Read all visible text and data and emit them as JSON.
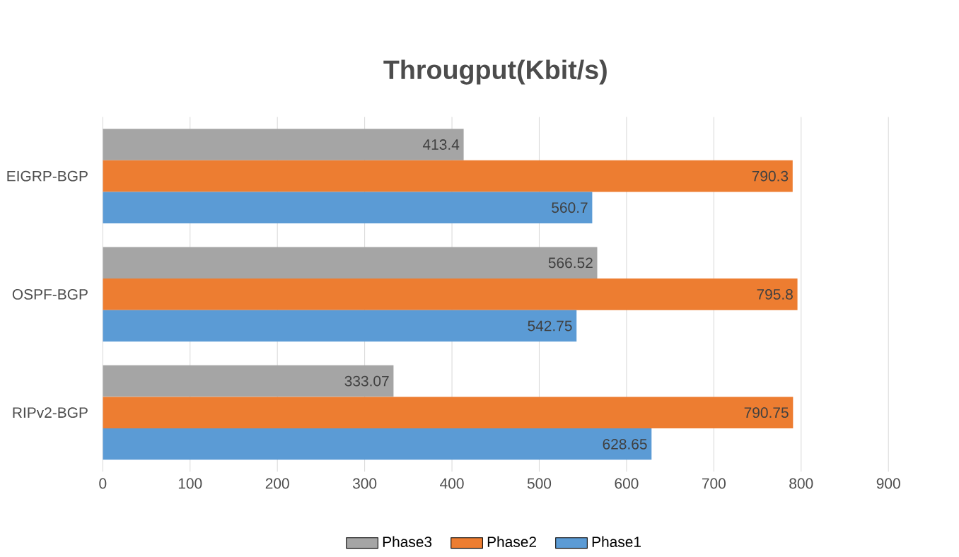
{
  "chart_data": {
    "type": "bar",
    "orientation": "horizontal",
    "title": "Througput(Kbit/s)",
    "categories": [
      "EIGRP-BGP",
      "OSPF-BGP",
      "RIPv2-BGP"
    ],
    "series": [
      {
        "name": "Phase3",
        "color": "#a5a5a5",
        "values": [
          413.4,
          566.52,
          333.07
        ],
        "value_labels": [
          "413.4",
          "566.52",
          "333.07"
        ]
      },
      {
        "name": "Phase2",
        "color": "#ed7d31",
        "values": [
          790.3,
          795.8,
          790.75
        ],
        "value_labels": [
          "790.3",
          "795.8",
          "790.75"
        ]
      },
      {
        "name": "Phase1",
        "color": "#5b9bd5",
        "values": [
          560.7,
          542.75,
          628.65
        ],
        "value_labels": [
          "560.7",
          "542.75",
          "628.65"
        ]
      }
    ],
    "xlim": [
      0,
      900
    ],
    "xticks": [
      0,
      100,
      200,
      300,
      400,
      500,
      600,
      700,
      800,
      900
    ],
    "grid": "x",
    "legend": "bottom"
  }
}
